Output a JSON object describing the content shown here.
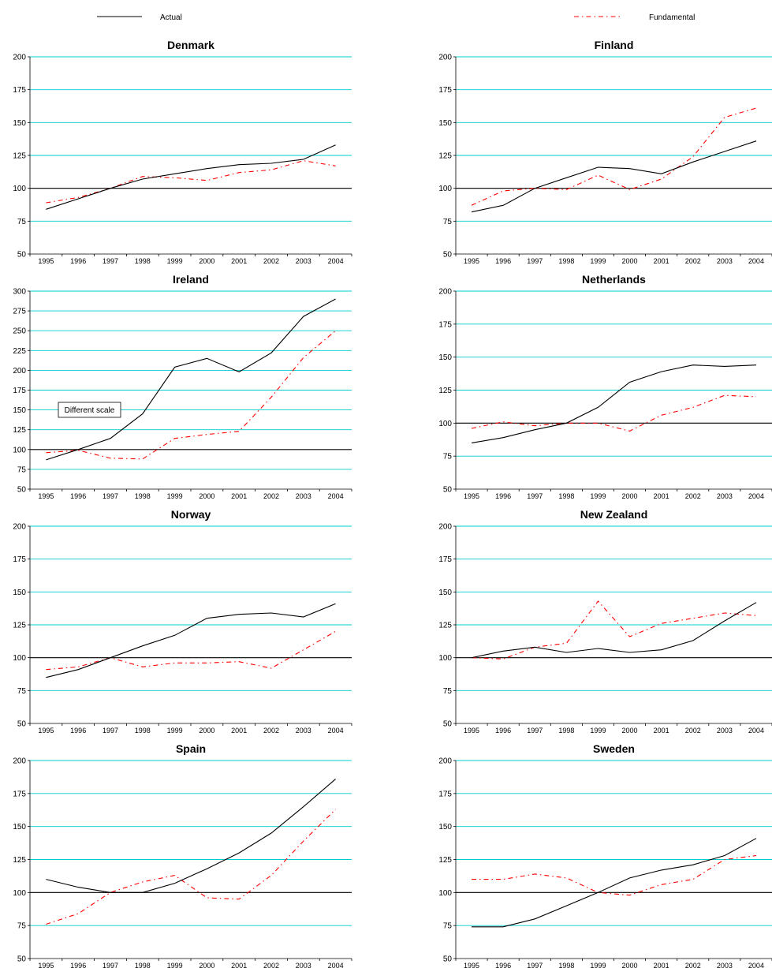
{
  "legend": {
    "actual_label": "Actual",
    "fundamental_label": "Fundamental"
  },
  "colors": {
    "actual": "#000000",
    "fundamental": "#ff0000",
    "grid": "#00cccc",
    "baseline": "#000000"
  },
  "note": "Different scale",
  "chart_data": [
    {
      "type": "line",
      "title": "Denmark",
      "categories": [
        "1995",
        "1996",
        "1997",
        "1998",
        "1999",
        "2000",
        "2001",
        "2002",
        "2003",
        "2004"
      ],
      "ylim": [
        50,
        200
      ],
      "yticks": [
        50,
        75,
        100,
        125,
        150,
        175,
        200
      ],
      "baseline": 100,
      "grid": true,
      "series": [
        {
          "name": "Actual",
          "values": [
            84,
            92,
            100,
            107,
            111,
            115,
            118,
            119,
            122,
            133
          ]
        },
        {
          "name": "Fundamental",
          "values": [
            89,
            93,
            100,
            109,
            108,
            106,
            112,
            114,
            121,
            117
          ]
        }
      ]
    },
    {
      "type": "line",
      "title": "Finland",
      "categories": [
        "1995",
        "1996",
        "1997",
        "1998",
        "1999",
        "2000",
        "2001",
        "2002",
        "2003",
        "2004"
      ],
      "ylim": [
        50,
        200
      ],
      "yticks": [
        50,
        75,
        100,
        125,
        150,
        175,
        200
      ],
      "baseline": 100,
      "grid": true,
      "series": [
        {
          "name": "Actual",
          "values": [
            82,
            87,
            100,
            108,
            116,
            115,
            111,
            120,
            128,
            136
          ]
        },
        {
          "name": "Fundamental",
          "values": [
            87,
            98,
            100,
            99,
            110,
            99,
            107,
            124,
            154,
            161
          ]
        }
      ]
    },
    {
      "type": "line",
      "title": "Ireland",
      "categories": [
        "1995",
        "1996",
        "1997",
        "1998",
        "1999",
        "2000",
        "2001",
        "2002",
        "2003",
        "2004"
      ],
      "ylim": [
        50,
        300
      ],
      "yticks": [
        50,
        75,
        100,
        125,
        150,
        175,
        200,
        225,
        250,
        275,
        300
      ],
      "baseline": 100,
      "grid": true,
      "series": [
        {
          "name": "Actual",
          "values": [
            87,
            100,
            114,
            145,
            204,
            215,
            198,
            222,
            268,
            290
          ]
        },
        {
          "name": "Fundamental",
          "values": [
            96,
            99,
            89,
            88,
            114,
            119,
            123,
            166,
            216,
            250
          ]
        }
      ]
    },
    {
      "type": "line",
      "title": "Netherlands",
      "categories": [
        "1995",
        "1996",
        "1997",
        "1998",
        "1999",
        "2000",
        "2001",
        "2002",
        "2003",
        "2004"
      ],
      "ylim": [
        50,
        200
      ],
      "yticks": [
        50,
        75,
        100,
        125,
        150,
        175,
        200
      ],
      "baseline": 100,
      "grid": true,
      "series": [
        {
          "name": "Actual",
          "values": [
            85,
            89,
            95,
            100,
            112,
            131,
            139,
            144,
            143,
            144
          ]
        },
        {
          "name": "Fundamental",
          "values": [
            96,
            101,
            98,
            100,
            100,
            94,
            106,
            112,
            121,
            120
          ]
        }
      ]
    },
    {
      "type": "line",
      "title": "Norway",
      "categories": [
        "1995",
        "1996",
        "1997",
        "1998",
        "1999",
        "2000",
        "2001",
        "2002",
        "2003",
        "2004"
      ],
      "ylim": [
        50,
        200
      ],
      "yticks": [
        50,
        75,
        100,
        125,
        150,
        175,
        200
      ],
      "baseline": 100,
      "grid": true,
      "series": [
        {
          "name": "Actual",
          "values": [
            85,
            91,
            100,
            109,
            117,
            130,
            133,
            134,
            131,
            141
          ]
        },
        {
          "name": "Fundamental",
          "values": [
            91,
            93,
            100,
            93,
            96,
            96,
            97,
            92,
            106,
            120
          ]
        }
      ]
    },
    {
      "type": "line",
      "title": "New Zealand",
      "categories": [
        "1995",
        "1996",
        "1997",
        "1998",
        "1999",
        "2000",
        "2001",
        "2002",
        "2003",
        "2004"
      ],
      "ylim": [
        50,
        200
      ],
      "yticks": [
        50,
        75,
        100,
        125,
        150,
        175,
        200
      ],
      "baseline": 100,
      "grid": true,
      "series": [
        {
          "name": "Actual",
          "values": [
            100,
            105,
            108,
            104,
            107,
            104,
            106,
            113,
            128,
            142
          ]
        },
        {
          "name": "Fundamental",
          "values": [
            100,
            99,
            108,
            111,
            143,
            116,
            126,
            130,
            134,
            132
          ]
        }
      ]
    },
    {
      "type": "line",
      "title": "Spain",
      "categories": [
        "1995",
        "1996",
        "1997",
        "1998",
        "1999",
        "2000",
        "2001",
        "2002",
        "2003",
        "2004"
      ],
      "ylim": [
        50,
        200
      ],
      "yticks": [
        50,
        75,
        100,
        125,
        150,
        175,
        200
      ],
      "baseline": 100,
      "grid": true,
      "series": [
        {
          "name": "Actual",
          "values": [
            110,
            104,
            100,
            100,
            107,
            118,
            130,
            145,
            165,
            186
          ]
        },
        {
          "name": "Fundamental",
          "values": [
            76,
            84,
            100,
            108,
            113,
            96,
            95,
            113,
            139,
            163
          ]
        }
      ]
    },
    {
      "type": "line",
      "title": "Sweden",
      "categories": [
        "1995",
        "1996",
        "1997",
        "1998",
        "1999",
        "2000",
        "2001",
        "2002",
        "2003",
        "2004"
      ],
      "ylim": [
        50,
        200
      ],
      "yticks": [
        50,
        75,
        100,
        125,
        150,
        175,
        200
      ],
      "baseline": 100,
      "grid": true,
      "series": [
        {
          "name": "Actual",
          "values": [
            74,
            74,
            80,
            90,
            100,
            111,
            117,
            121,
            128,
            141
          ]
        },
        {
          "name": "Fundamental",
          "values": [
            110,
            110,
            114,
            111,
            100,
            98,
            106,
            110,
            125,
            128
          ]
        }
      ]
    }
  ]
}
